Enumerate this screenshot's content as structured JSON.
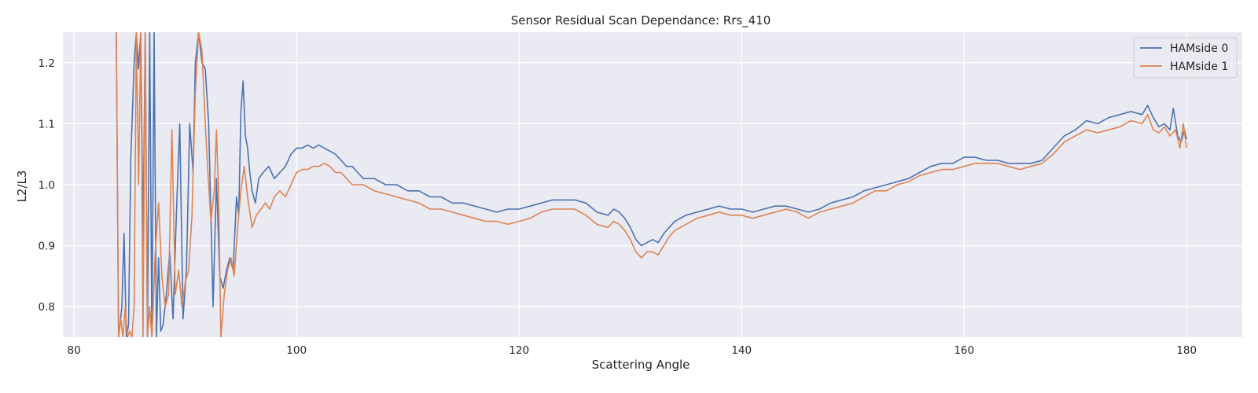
{
  "chart_data": {
    "type": "line",
    "title": "Sensor Residual Scan Dependance: Rrs_410",
    "xlabel": "Scattering Angle",
    "ylabel": "L2/L3",
    "xlim": [
      79,
      185
    ],
    "ylim": [
      0.75,
      1.25
    ],
    "xticks": [
      80,
      100,
      120,
      140,
      160,
      180
    ],
    "yticks": [
      0.8,
      0.9,
      1.0,
      1.1,
      1.2
    ],
    "grid": true,
    "legend_position": "top-right",
    "background": "#eaeaf2",
    "series": [
      {
        "name": "HAMside 0",
        "color": "#4c72b0",
        "points": [
          [
            83.8,
            1.25
          ],
          [
            84.0,
            0.75
          ],
          [
            84.3,
            0.8
          ],
          [
            84.5,
            0.92
          ],
          [
            84.7,
            0.75
          ],
          [
            84.9,
            0.77
          ],
          [
            85.1,
            1.04
          ],
          [
            85.4,
            1.2
          ],
          [
            85.6,
            1.25
          ],
          [
            85.8,
            1.19
          ],
          [
            86.0,
            1.25
          ],
          [
            86.2,
            0.9
          ],
          [
            86.4,
            1.25
          ],
          [
            86.6,
            0.75
          ],
          [
            86.8,
            1.25
          ],
          [
            87.0,
            0.75
          ],
          [
            87.2,
            1.25
          ],
          [
            87.4,
            0.75
          ],
          [
            87.6,
            0.88
          ],
          [
            87.8,
            0.76
          ],
          [
            88.0,
            0.77
          ],
          [
            88.3,
            0.82
          ],
          [
            88.6,
            0.89
          ],
          [
            88.9,
            0.78
          ],
          [
            89.2,
            0.95
          ],
          [
            89.5,
            1.1
          ],
          [
            89.8,
            0.78
          ],
          [
            90.1,
            0.86
          ],
          [
            90.4,
            1.1
          ],
          [
            90.7,
            1.02
          ],
          [
            90.9,
            1.2
          ],
          [
            91.2,
            1.25
          ],
          [
            91.5,
            1.2
          ],
          [
            91.8,
            1.19
          ],
          [
            92.1,
            1.1
          ],
          [
            92.3,
            0.95
          ],
          [
            92.5,
            0.8
          ],
          [
            92.8,
            1.01
          ],
          [
            93.1,
            0.85
          ],
          [
            93.4,
            0.83
          ],
          [
            93.7,
            0.86
          ],
          [
            94.0,
            0.88
          ],
          [
            94.3,
            0.86
          ],
          [
            94.6,
            0.98
          ],
          [
            94.8,
            0.95
          ],
          [
            95.0,
            1.12
          ],
          [
            95.2,
            1.17
          ],
          [
            95.4,
            1.08
          ],
          [
            95.6,
            1.06
          ],
          [
            95.8,
            1.02
          ],
          [
            96.0,
            0.99
          ],
          [
            96.3,
            0.97
          ],
          [
            96.6,
            1.01
          ],
          [
            97.0,
            1.02
          ],
          [
            97.5,
            1.03
          ],
          [
            98.0,
            1.01
          ],
          [
            98.5,
            1.02
          ],
          [
            99.0,
            1.03
          ],
          [
            99.5,
            1.05
          ],
          [
            100.0,
            1.06
          ],
          [
            100.5,
            1.06
          ],
          [
            101.0,
            1.065
          ],
          [
            101.5,
            1.06
          ],
          [
            102.0,
            1.065
          ],
          [
            102.5,
            1.06
          ],
          [
            103.0,
            1.055
          ],
          [
            103.5,
            1.05
          ],
          [
            104.0,
            1.04
          ],
          [
            104.5,
            1.03
          ],
          [
            105.0,
            1.03
          ],
          [
            105.5,
            1.02
          ],
          [
            106.0,
            1.01
          ],
          [
            107.0,
            1.01
          ],
          [
            108.0,
            1.0
          ],
          [
            109.0,
            1.0
          ],
          [
            110.0,
            0.99
          ],
          [
            111.0,
            0.99
          ],
          [
            112.0,
            0.98
          ],
          [
            113.0,
            0.98
          ],
          [
            114.0,
            0.97
          ],
          [
            115.0,
            0.97
          ],
          [
            116.0,
            0.965
          ],
          [
            117.0,
            0.96
          ],
          [
            118.0,
            0.955
          ],
          [
            119.0,
            0.96
          ],
          [
            120.0,
            0.96
          ],
          [
            121.0,
            0.965
          ],
          [
            122.0,
            0.97
          ],
          [
            123.0,
            0.975
          ],
          [
            124.0,
            0.975
          ],
          [
            125.0,
            0.975
          ],
          [
            126.0,
            0.97
          ],
          [
            127.0,
            0.955
          ],
          [
            128.0,
            0.95
          ],
          [
            128.5,
            0.96
          ],
          [
            129.0,
            0.955
          ],
          [
            129.5,
            0.945
          ],
          [
            130.0,
            0.93
          ],
          [
            130.5,
            0.91
          ],
          [
            131.0,
            0.9
          ],
          [
            131.5,
            0.905
          ],
          [
            132.0,
            0.91
          ],
          [
            132.5,
            0.905
          ],
          [
            133.0,
            0.92
          ],
          [
            133.5,
            0.93
          ],
          [
            134.0,
            0.94
          ],
          [
            135.0,
            0.95
          ],
          [
            136.0,
            0.955
          ],
          [
            137.0,
            0.96
          ],
          [
            138.0,
            0.965
          ],
          [
            139.0,
            0.96
          ],
          [
            140.0,
            0.96
          ],
          [
            141.0,
            0.955
          ],
          [
            142.0,
            0.96
          ],
          [
            143.0,
            0.965
          ],
          [
            144.0,
            0.965
          ],
          [
            145.0,
            0.96
          ],
          [
            146.0,
            0.955
          ],
          [
            147.0,
            0.96
          ],
          [
            148.0,
            0.97
          ],
          [
            149.0,
            0.975
          ],
          [
            150.0,
            0.98
          ],
          [
            151.0,
            0.99
          ],
          [
            152.0,
            0.995
          ],
          [
            153.0,
            1.0
          ],
          [
            154.0,
            1.005
          ],
          [
            155.0,
            1.01
          ],
          [
            156.0,
            1.02
          ],
          [
            157.0,
            1.03
          ],
          [
            158.0,
            1.035
          ],
          [
            159.0,
            1.035
          ],
          [
            160.0,
            1.045
          ],
          [
            161.0,
            1.045
          ],
          [
            162.0,
            1.04
          ],
          [
            163.0,
            1.04
          ],
          [
            164.0,
            1.035
          ],
          [
            165.0,
            1.035
          ],
          [
            166.0,
            1.035
          ],
          [
            167.0,
            1.04
          ],
          [
            168.0,
            1.06
          ],
          [
            169.0,
            1.08
          ],
          [
            170.0,
            1.09
          ],
          [
            171.0,
            1.105
          ],
          [
            172.0,
            1.1
          ],
          [
            173.0,
            1.11
          ],
          [
            174.0,
            1.115
          ],
          [
            175.0,
            1.12
          ],
          [
            176.0,
            1.115
          ],
          [
            176.5,
            1.13
          ],
          [
            177.0,
            1.11
          ],
          [
            177.5,
            1.095
          ],
          [
            178.0,
            1.1
          ],
          [
            178.5,
            1.09
          ],
          [
            178.8,
            1.125
          ],
          [
            179.2,
            1.08
          ],
          [
            179.5,
            1.07
          ],
          [
            179.8,
            1.09
          ],
          [
            180.0,
            1.075
          ]
        ]
      },
      {
        "name": "HAMside 1",
        "color": "#dd8452",
        "points": [
          [
            83.8,
            1.25
          ],
          [
            84.0,
            0.75
          ],
          [
            84.2,
            0.78
          ],
          [
            84.4,
            0.75
          ],
          [
            84.6,
            0.8
          ],
          [
            84.8,
            0.75
          ],
          [
            85.0,
            0.76
          ],
          [
            85.2,
            0.75
          ],
          [
            85.4,
            0.8
          ],
          [
            85.6,
            1.25
          ],
          [
            85.8,
            1.0
          ],
          [
            86.0,
            1.25
          ],
          [
            86.2,
            0.75
          ],
          [
            86.4,
            1.25
          ],
          [
            86.6,
            0.75
          ],
          [
            86.8,
            0.8
          ],
          [
            87.0,
            0.75
          ],
          [
            87.3,
            0.89
          ],
          [
            87.6,
            0.97
          ],
          [
            87.9,
            0.85
          ],
          [
            88.2,
            0.8
          ],
          [
            88.5,
            0.82
          ],
          [
            88.8,
            1.09
          ],
          [
            89.1,
            0.82
          ],
          [
            89.4,
            0.86
          ],
          [
            89.7,
            0.8
          ],
          [
            90.0,
            0.84
          ],
          [
            90.3,
            0.86
          ],
          [
            90.6,
            0.95
          ],
          [
            90.9,
            1.15
          ],
          [
            91.2,
            1.25
          ],
          [
            91.5,
            1.22
          ],
          [
            91.8,
            1.1
          ],
          [
            92.0,
            1.03
          ],
          [
            92.3,
            0.94
          ],
          [
            92.6,
            0.99
          ],
          [
            92.8,
            1.09
          ],
          [
            93.0,
            0.98
          ],
          [
            93.2,
            0.75
          ],
          [
            93.5,
            0.82
          ],
          [
            93.8,
            0.86
          ],
          [
            94.1,
            0.88
          ],
          [
            94.4,
            0.85
          ],
          [
            94.7,
            0.93
          ],
          [
            95.0,
            0.99
          ],
          [
            95.3,
            1.03
          ],
          [
            95.6,
            0.98
          ],
          [
            96.0,
            0.93
          ],
          [
            96.4,
            0.95
          ],
          [
            96.8,
            0.96
          ],
          [
            97.2,
            0.97
          ],
          [
            97.6,
            0.96
          ],
          [
            98.0,
            0.98
          ],
          [
            98.5,
            0.99
          ],
          [
            99.0,
            0.98
          ],
          [
            99.5,
            1.0
          ],
          [
            100.0,
            1.02
          ],
          [
            100.5,
            1.025
          ],
          [
            101.0,
            1.025
          ],
          [
            101.5,
            1.03
          ],
          [
            102.0,
            1.03
          ],
          [
            102.5,
            1.035
          ],
          [
            103.0,
            1.03
          ],
          [
            103.5,
            1.02
          ],
          [
            104.0,
            1.02
          ],
          [
            104.5,
            1.01
          ],
          [
            105.0,
            1.0
          ],
          [
            106.0,
            1.0
          ],
          [
            107.0,
            0.99
          ],
          [
            108.0,
            0.985
          ],
          [
            109.0,
            0.98
          ],
          [
            110.0,
            0.975
          ],
          [
            111.0,
            0.97
          ],
          [
            112.0,
            0.96
          ],
          [
            113.0,
            0.96
          ],
          [
            114.0,
            0.955
          ],
          [
            115.0,
            0.95
          ],
          [
            116.0,
            0.945
          ],
          [
            117.0,
            0.94
          ],
          [
            118.0,
            0.94
          ],
          [
            119.0,
            0.935
          ],
          [
            120.0,
            0.94
          ],
          [
            121.0,
            0.945
          ],
          [
            122.0,
            0.955
          ],
          [
            123.0,
            0.96
          ],
          [
            124.0,
            0.96
          ],
          [
            125.0,
            0.96
          ],
          [
            126.0,
            0.95
          ],
          [
            127.0,
            0.935
          ],
          [
            128.0,
            0.93
          ],
          [
            128.5,
            0.94
          ],
          [
            129.0,
            0.935
          ],
          [
            129.5,
            0.925
          ],
          [
            130.0,
            0.91
          ],
          [
            130.5,
            0.89
          ],
          [
            131.0,
            0.88
          ],
          [
            131.5,
            0.89
          ],
          [
            132.0,
            0.89
          ],
          [
            132.5,
            0.885
          ],
          [
            133.0,
            0.9
          ],
          [
            133.5,
            0.915
          ],
          [
            134.0,
            0.925
          ],
          [
            135.0,
            0.935
          ],
          [
            136.0,
            0.945
          ],
          [
            137.0,
            0.95
          ],
          [
            138.0,
            0.955
          ],
          [
            139.0,
            0.95
          ],
          [
            140.0,
            0.95
          ],
          [
            141.0,
            0.945
          ],
          [
            142.0,
            0.95
          ],
          [
            143.0,
            0.955
          ],
          [
            144.0,
            0.96
          ],
          [
            145.0,
            0.955
          ],
          [
            146.0,
            0.945
          ],
          [
            147.0,
            0.955
          ],
          [
            148.0,
            0.96
          ],
          [
            149.0,
            0.965
          ],
          [
            150.0,
            0.97
          ],
          [
            151.0,
            0.98
          ],
          [
            152.0,
            0.99
          ],
          [
            153.0,
            0.99
          ],
          [
            154.0,
            1.0
          ],
          [
            155.0,
            1.005
          ],
          [
            156.0,
            1.015
          ],
          [
            157.0,
            1.02
          ],
          [
            158.0,
            1.025
          ],
          [
            159.0,
            1.025
          ],
          [
            160.0,
            1.03
          ],
          [
            161.0,
            1.035
          ],
          [
            162.0,
            1.035
          ],
          [
            163.0,
            1.035
          ],
          [
            164.0,
            1.03
          ],
          [
            165.0,
            1.025
          ],
          [
            166.0,
            1.03
          ],
          [
            167.0,
            1.035
          ],
          [
            168.0,
            1.05
          ],
          [
            169.0,
            1.07
          ],
          [
            170.0,
            1.08
          ],
          [
            171.0,
            1.09
          ],
          [
            172.0,
            1.085
          ],
          [
            173.0,
            1.09
          ],
          [
            174.0,
            1.095
          ],
          [
            175.0,
            1.105
          ],
          [
            176.0,
            1.1
          ],
          [
            176.5,
            1.115
          ],
          [
            177.0,
            1.09
          ],
          [
            177.5,
            1.085
          ],
          [
            178.0,
            1.095
          ],
          [
            178.5,
            1.08
          ],
          [
            179.0,
            1.09
          ],
          [
            179.4,
            1.06
          ],
          [
            179.7,
            1.1
          ],
          [
            180.0,
            1.06
          ]
        ]
      }
    ]
  }
}
